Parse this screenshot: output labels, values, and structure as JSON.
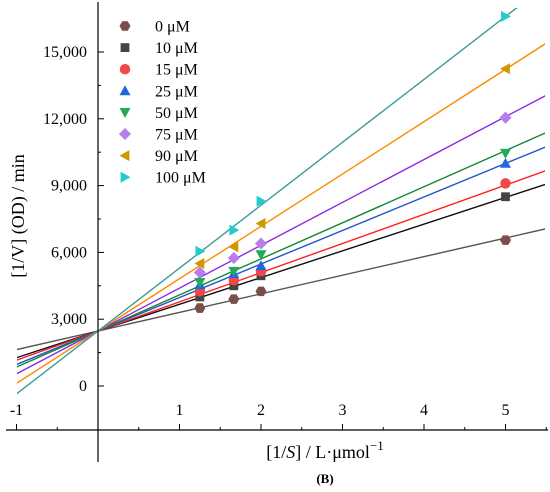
{
  "chart_data": {
    "type": "scatter",
    "subtype": "lineweaver-burk",
    "xlabel": {
      "prefix": "[1/",
      "var": "S",
      "suffix": "] / L·μmol",
      "exp": "−1"
    },
    "ylabel": "[1/V] (OD) / min",
    "caption": "(B)",
    "xlim": [
      -1,
      5.55
    ],
    "ylim": [
      -700,
      16600
    ],
    "xticks": [
      -1,
      1,
      2,
      3,
      4,
      5
    ],
    "xtick_labels": [
      "-1",
      "1",
      "2",
      "3",
      "4",
      "5"
    ],
    "yticks": [
      0,
      3000,
      6000,
      9000,
      12000,
      15000
    ],
    "ytick_labels": [
      "0",
      "3,000",
      "6,000",
      "9,000",
      "12,000",
      "15,000"
    ],
    "grid": false,
    "legend_position": "top-left",
    "x": [
      1.25,
      1.667,
      2.0,
      5.0
    ],
    "series": [
      {
        "name": "0 μM",
        "marker": "hexagon",
        "color": "#7a4f49",
        "line_color": "#555555",
        "values": [
          3500,
          3900,
          4250,
          6550
        ],
        "fit": {
          "slope": 835,
          "intercept": 2470
        }
      },
      {
        "name": "10 μM",
        "marker": "square",
        "color": "#444444",
        "line_color": "#111111",
        "values": [
          4000,
          4500,
          4950,
          8500
        ],
        "fit": {
          "slope": 1200,
          "intercept": 2470
        }
      },
      {
        "name": "15 μM",
        "marker": "circle",
        "color": "#f04848",
        "line_color": "#ff2020",
        "values": [
          4250,
          4750,
          5150,
          9100
        ],
        "fit": {
          "slope": 1310,
          "intercept": 2470
        }
      },
      {
        "name": "25 μM",
        "marker": "triangle-up",
        "color": "#2266dd",
        "line_color": "#2255cc",
        "values": [
          4550,
          5050,
          5400,
          10000
        ],
        "fit": {
          "slope": 1505,
          "intercept": 2470
        }
      },
      {
        "name": "50 μM",
        "marker": "triangle-down",
        "color": "#22aa55",
        "line_color": "#118833",
        "values": [
          4650,
          5150,
          5900,
          10450
        ],
        "fit": {
          "slope": 1620,
          "intercept": 2470
        }
      },
      {
        "name": "75 μM",
        "marker": "diamond",
        "color": "#b77ee8",
        "line_color": "#8a2be2",
        "values": [
          5100,
          5750,
          6400,
          12050
        ],
        "fit": {
          "slope": 1925,
          "intercept": 2470
        }
      },
      {
        "name": "90 μM",
        "marker": "triangle-left",
        "color": "#cc9900",
        "line_color": "#ff8800",
        "values": [
          5500,
          6250,
          7300,
          14250
        ],
        "fit": {
          "slope": 2350,
          "intercept": 2470
        }
      },
      {
        "name": "100 μM",
        "marker": "triangle-right",
        "color": "#22cccc",
        "line_color": "#3a9a9a",
        "values": [
          6050,
          7000,
          8300,
          16600
        ],
        "fit": {
          "slope": 2825,
          "intercept": 2470
        }
      }
    ]
  }
}
